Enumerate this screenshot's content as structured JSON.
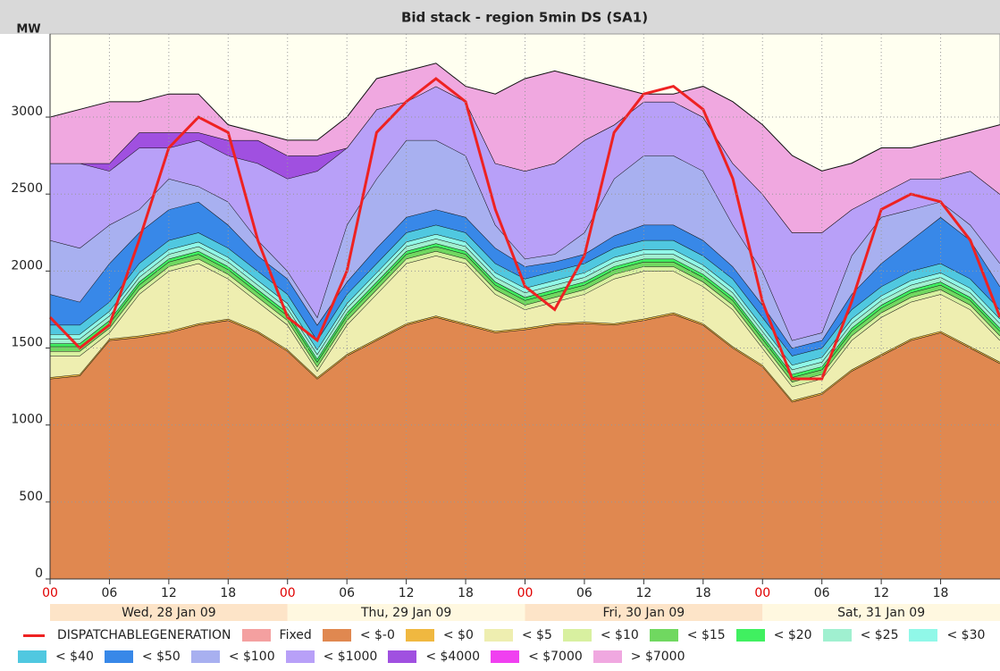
{
  "chart_data": {
    "type": "stacked_area",
    "title": "Bid stack - region 5min DS (SA1)",
    "ylabel": "MW",
    "x": [
      0,
      3,
      6,
      9,
      12,
      15,
      18,
      21,
      24,
      27,
      30,
      33,
      36,
      39,
      42,
      45,
      48,
      51,
      54,
      57,
      60,
      63,
      66,
      69,
      72,
      75,
      78,
      81,
      84,
      87,
      90,
      93,
      96
    ],
    "xlim": [
      0,
      96
    ],
    "xticks": [
      {
        "value": 0,
        "label": "00"
      },
      {
        "value": 6,
        "label": "06"
      },
      {
        "value": 12,
        "label": "12"
      },
      {
        "value": 18,
        "label": "18"
      },
      {
        "value": 24,
        "label": "00"
      },
      {
        "value": 30,
        "label": "06"
      },
      {
        "value": 36,
        "label": "12"
      },
      {
        "value": 42,
        "label": "18"
      },
      {
        "value": 48,
        "label": "00"
      },
      {
        "value": 54,
        "label": "06"
      },
      {
        "value": 60,
        "label": "12"
      },
      {
        "value": 66,
        "label": "18"
      },
      {
        "value": 72,
        "label": "00"
      },
      {
        "value": 78,
        "label": "06"
      },
      {
        "value": 84,
        "label": "12"
      },
      {
        "value": 90,
        "label": "18"
      }
    ],
    "days": [
      "Wed, 28 Jan 09",
      "Thu, 29 Jan 09",
      "Fri, 30 Jan 09",
      "Sat, 31 Jan 09"
    ],
    "ylim": [
      0,
      3540
    ],
    "yticks": [
      0,
      500,
      1000,
      1500,
      2000,
      2500,
      3000
    ],
    "grid": true,
    "line": {
      "name": "DISPATCHABLEGENERATION",
      "color": "#ee2222",
      "values": [
        1700,
        1500,
        1650,
        2200,
        2800,
        3000,
        2900,
        2200,
        1700,
        1550,
        2000,
        2900,
        3100,
        3250,
        3100,
        2400,
        1900,
        1750,
        2100,
        2900,
        3150,
        3200,
        3050,
        2600,
        1800,
        1300,
        1300,
        1800,
        2400,
        2500,
        2450,
        2200,
        1700
      ]
    },
    "series": [
      {
        "name": "Fixed",
        "color": "#f4a0a0",
        "values": [
          0,
          0,
          0,
          0,
          0,
          0,
          0,
          0,
          0,
          0,
          0,
          0,
          0,
          0,
          0,
          0,
          0,
          0,
          0,
          0,
          0,
          0,
          0,
          0,
          0,
          0,
          0,
          0,
          0,
          0,
          0,
          0,
          0
        ]
      },
      {
        "name": "< $-0",
        "color": "#e08850",
        "values": [
          1300,
          1320,
          1550,
          1570,
          1600,
          1650,
          1680,
          1600,
          1480,
          1300,
          1450,
          1550,
          1650,
          1700,
          1650,
          1600,
          1620,
          1650,
          1660,
          1650,
          1680,
          1720,
          1650,
          1500,
          1380,
          1150,
          1200,
          1350,
          1450,
          1550,
          1600,
          1500,
          1400
        ]
      },
      {
        "name": "< $0",
        "color": "#f0b840",
        "values": [
          10,
          10,
          10,
          10,
          10,
          10,
          10,
          10,
          10,
          10,
          10,
          10,
          10,
          10,
          10,
          10,
          10,
          10,
          10,
          10,
          10,
          10,
          10,
          10,
          10,
          10,
          10,
          10,
          10,
          10,
          10,
          10,
          10
        ]
      },
      {
        "name": "< $5",
        "color": "#eeeeb0",
        "values": [
          140,
          120,
          40,
          270,
          390,
          390,
          260,
          190,
          160,
          40,
          190,
          290,
          390,
          390,
          390,
          240,
          120,
          140,
          180,
          290,
          310,
          270,
          240,
          240,
          110,
          90,
          90,
          190,
          240,
          240,
          240,
          240,
          140
        ]
      },
      {
        "name": "< $10",
        "color": "#d8f0a0",
        "values": [
          30,
          30,
          30,
          30,
          30,
          30,
          30,
          30,
          30,
          30,
          30,
          30,
          30,
          30,
          30,
          30,
          30,
          30,
          30,
          30,
          30,
          30,
          30,
          30,
          30,
          30,
          30,
          30,
          30,
          30,
          30,
          30,
          30
        ]
      },
      {
        "name": "< $15",
        "color": "#70d860",
        "values": [
          30,
          30,
          30,
          30,
          30,
          30,
          30,
          30,
          30,
          30,
          30,
          30,
          30,
          30,
          30,
          30,
          30,
          30,
          30,
          30,
          30,
          30,
          30,
          30,
          30,
          30,
          30,
          30,
          30,
          30,
          30,
          30,
          30
        ]
      },
      {
        "name": "< $20",
        "color": "#40f060",
        "values": [
          20,
          20,
          20,
          20,
          20,
          20,
          20,
          20,
          20,
          20,
          20,
          20,
          20,
          20,
          20,
          20,
          20,
          20,
          20,
          20,
          20,
          20,
          20,
          20,
          20,
          20,
          20,
          20,
          20,
          20,
          20,
          20,
          20
        ]
      },
      {
        "name": "< $25",
        "color": "#a0f0d0",
        "values": [
          30,
          30,
          30,
          30,
          30,
          30,
          30,
          30,
          30,
          30,
          30,
          30,
          30,
          30,
          30,
          30,
          30,
          30,
          30,
          30,
          30,
          30,
          30,
          30,
          30,
          30,
          30,
          30,
          30,
          30,
          30,
          30,
          30
        ]
      },
      {
        "name": "< $30",
        "color": "#90f8e8",
        "values": [
          30,
          30,
          30,
          30,
          30,
          30,
          30,
          30,
          30,
          30,
          30,
          30,
          30,
          30,
          30,
          30,
          30,
          30,
          30,
          30,
          30,
          30,
          30,
          30,
          30,
          30,
          30,
          30,
          30,
          30,
          30,
          30,
          30
        ]
      },
      {
        "name": "< $40",
        "color": "#50c8e0",
        "values": [
          60,
          60,
          60,
          60,
          60,
          60,
          60,
          60,
          60,
          60,
          60,
          60,
          60,
          60,
          60,
          60,
          60,
          60,
          60,
          60,
          60,
          60,
          60,
          60,
          60,
          60,
          60,
          60,
          60,
          60,
          60,
          60,
          60
        ]
      },
      {
        "name": "< $50",
        "color": "#3888e8",
        "values": [
          200,
          150,
          250,
          200,
          200,
          200,
          150,
          100,
          100,
          100,
          80,
          100,
          100,
          100,
          100,
          100,
          80,
          60,
          60,
          80,
          100,
          100,
          100,
          80,
          80,
          50,
          50,
          100,
          150,
          200,
          300,
          250,
          150
        ]
      },
      {
        "name": "< $100",
        "color": "#a8b0f0",
        "values": [
          350,
          350,
          250,
          150,
          200,
          100,
          150,
          100,
          50,
          50,
          370,
          450,
          500,
          450,
          400,
          150,
          50,
          50,
          140,
          370,
          450,
          450,
          450,
          270,
          220,
          50,
          50,
          250,
          300,
          200,
          100,
          100,
          150
        ]
      },
      {
        "name": "< $1000",
        "color": "#b8a0f8",
        "values": [
          500,
          550,
          350,
          400,
          200,
          300,
          300,
          500,
          600,
          950,
          500,
          450,
          250,
          350,
          350,
          400,
          570,
          590,
          600,
          350,
          350,
          350,
          350,
          400,
          500,
          700,
          650,
          300,
          150,
          200,
          150,
          350,
          450
        ]
      },
      {
        "name": "< $4000",
        "color": "#a050e0",
        "values": [
          0,
          0,
          50,
          100,
          100,
          50,
          100,
          150,
          150,
          100,
          0,
          0,
          0,
          0,
          0,
          0,
          0,
          0,
          0,
          0,
          0,
          0,
          0,
          0,
          0,
          0,
          0,
          0,
          0,
          0,
          0,
          0,
          0
        ]
      },
      {
        "name": "< $7000",
        "color": "#f040f0",
        "values": [
          0,
          0,
          0,
          0,
          0,
          0,
          0,
          0,
          0,
          0,
          0,
          0,
          0,
          0,
          0,
          0,
          0,
          0,
          0,
          0,
          0,
          0,
          0,
          0,
          0,
          0,
          0,
          0,
          0,
          0,
          0,
          0,
          0
        ]
      },
      {
        "name": "> $7000",
        "color": "#f0a8e0",
        "values": [
          300,
          350,
          400,
          200,
          250,
          250,
          100,
          50,
          100,
          100,
          200,
          200,
          200,
          150,
          100,
          450,
          600,
          600,
          400,
          250,
          50,
          50,
          200,
          400,
          450,
          500,
          400,
          300,
          300,
          200,
          250,
          250,
          450
        ]
      }
    ]
  }
}
